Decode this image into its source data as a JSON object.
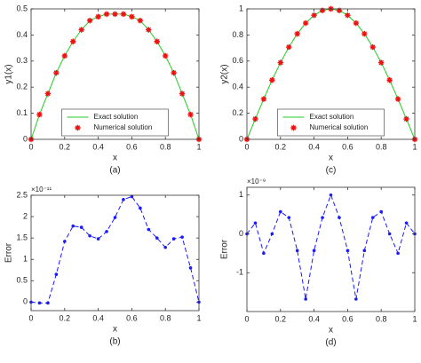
{
  "chart_data": [
    {
      "type": "line",
      "caption": "(a)",
      "xlabel": "x",
      "ylabel": "y1(x)",
      "x": [
        0,
        0.05,
        0.1,
        0.15,
        0.2,
        0.25,
        0.3,
        0.35,
        0.4,
        0.45,
        0.5,
        0.55,
        0.6,
        0.65,
        0.7,
        0.75,
        0.8,
        0.85,
        0.9,
        0.95,
        1
      ],
      "xlim": [
        0,
        1
      ],
      "xticks": [
        0,
        0.2,
        0.4,
        0.6,
        0.8,
        1
      ],
      "ylim": [
        0,
        0.5
      ],
      "yticks": [
        0,
        0.1,
        0.2,
        0.3,
        0.4,
        0.5
      ],
      "legend": "lower center",
      "series": [
        {
          "name": "Exact solution",
          "color": "#22cc22",
          "linestyle": "solid",
          "marker": "none",
          "values": [
            0,
            0.095,
            0.175,
            0.255,
            0.32,
            0.375,
            0.42,
            0.455,
            0.47,
            0.48,
            0.48,
            0.48,
            0.47,
            0.455,
            0.42,
            0.375,
            0.32,
            0.255,
            0.175,
            0.095,
            0
          ]
        },
        {
          "name": "Numerical solution",
          "color": "#ee1111",
          "linestyle": "none",
          "marker": "star",
          "values": [
            0,
            0.095,
            0.175,
            0.255,
            0.32,
            0.375,
            0.42,
            0.455,
            0.47,
            0.48,
            0.48,
            0.48,
            0.47,
            0.455,
            0.42,
            0.375,
            0.32,
            0.255,
            0.175,
            0.095,
            0
          ]
        }
      ]
    },
    {
      "type": "line",
      "caption": "(c)",
      "xlabel": "x",
      "ylabel": "y2(x)",
      "x": [
        0,
        0.05,
        0.1,
        0.15,
        0.2,
        0.25,
        0.3,
        0.35,
        0.4,
        0.45,
        0.5,
        0.55,
        0.6,
        0.65,
        0.7,
        0.75,
        0.8,
        0.85,
        0.9,
        0.95,
        1
      ],
      "xlim": [
        0,
        1
      ],
      "xticks": [
        0,
        0.2,
        0.4,
        0.6,
        0.8,
        1
      ],
      "ylim": [
        0,
        1
      ],
      "yticks": [
        0,
        0.2,
        0.4,
        0.6,
        0.8,
        1
      ],
      "legend": "lower center",
      "series": [
        {
          "name": "Exact solution",
          "color": "#22cc22",
          "linestyle": "solid",
          "marker": "none",
          "values": [
            0,
            0.156,
            0.309,
            0.454,
            0.588,
            0.707,
            0.809,
            0.891,
            0.951,
            0.988,
            1,
            0.988,
            0.951,
            0.891,
            0.809,
            0.707,
            0.588,
            0.454,
            0.309,
            0.156,
            0
          ]
        },
        {
          "name": "Numerical solution",
          "color": "#ee1111",
          "linestyle": "none",
          "marker": "star",
          "values": [
            0,
            0.156,
            0.309,
            0.454,
            0.588,
            0.707,
            0.809,
            0.891,
            0.951,
            0.988,
            1,
            0.988,
            0.951,
            0.891,
            0.809,
            0.707,
            0.588,
            0.454,
            0.309,
            0.156,
            0
          ]
        }
      ]
    },
    {
      "type": "line",
      "caption": "(b)",
      "xlabel": "x",
      "ylabel": "Error",
      "multiplier": "×10⁻¹¹",
      "x": [
        0,
        0.05,
        0.1,
        0.15,
        0.2,
        0.25,
        0.3,
        0.35,
        0.4,
        0.45,
        0.5,
        0.55,
        0.6,
        0.65,
        0.7,
        0.75,
        0.8,
        0.85,
        0.9,
        0.95,
        1
      ],
      "xlim": [
        0,
        1
      ],
      "xticks": [
        0,
        0.2,
        0.4,
        0.6,
        0.8,
        1
      ],
      "ylim": [
        -0.2,
        2.5
      ],
      "yticks": [
        0,
        0.5,
        1,
        1.5,
        2,
        2.5
      ],
      "series": [
        {
          "color": "#1a1aff",
          "linestyle": "dashed",
          "marker": "dot",
          "values": [
            0,
            -0.02,
            -0.02,
            0.65,
            1.42,
            1.78,
            1.75,
            1.55,
            1.48,
            1.65,
            1.98,
            2.4,
            2.47,
            2.2,
            1.7,
            1.5,
            1.28,
            1.48,
            1.52,
            0.8,
            0
          ]
        }
      ]
    },
    {
      "type": "line",
      "caption": "(d)",
      "xlabel": "x",
      "ylabel": "Error",
      "multiplier": "×10⁻⁹",
      "x": [
        0,
        0.05,
        0.1,
        0.15,
        0.2,
        0.25,
        0.3,
        0.35,
        0.4,
        0.45,
        0.5,
        0.55,
        0.6,
        0.65,
        0.7,
        0.75,
        0.8,
        0.85,
        0.9,
        0.95,
        1
      ],
      "xlim": [
        0,
        1
      ],
      "xticks": [
        0,
        0.2,
        0.4,
        0.6,
        0.8,
        1
      ],
      "ylim": [
        -2,
        1.2
      ],
      "yticks": [
        -1,
        0,
        1
      ],
      "series": [
        {
          "color": "#1a1aff",
          "linestyle": "dashed",
          "marker": "dot",
          "values": [
            0,
            0.28,
            -0.5,
            0,
            0.57,
            0.42,
            -0.43,
            -1.68,
            -0.43,
            0.42,
            1,
            0.42,
            -0.43,
            -1.68,
            -0.43,
            0.42,
            0.57,
            0,
            -0.5,
            0.28,
            0
          ]
        }
      ]
    }
  ]
}
